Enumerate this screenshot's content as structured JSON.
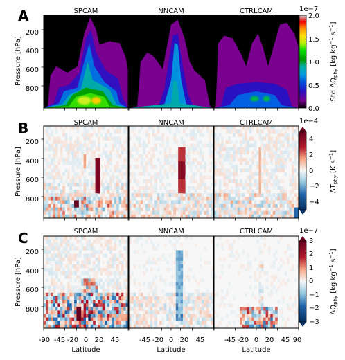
{
  "chart_data": [
    {
      "panel_letter": "A",
      "type": "heatmap",
      "subtitles": [
        "SPCAM",
        "NNCAM",
        "CTRLCAM"
      ],
      "ylabel": "Pressure [hPa]",
      "yticks": [
        "200",
        "400",
        "600",
        "800"
      ],
      "ylim": [
        1000,
        0
      ],
      "colorbar": {
        "label_main": "Std ΔQ",
        "label_sub": "phy",
        "label_units": "[kg kg",
        "label_units_end": " s",
        "exp1": "−1",
        "exp2": "−1",
        "units_close": "]",
        "offset": "1e−7",
        "ticks": [
          "0.0",
          "0.5",
          "1.0",
          "1.5",
          "2.0"
        ],
        "range": [
          0,
          2.0
        ],
        "colormap": "nipy_spectral"
      },
      "panels": [
        {
          "name": "SPCAM",
          "peak_std": 1.9,
          "peak_latitude": 10,
          "peak_pressure": 900
        },
        {
          "name": "NNCAM",
          "peak_std": 1.1,
          "peak_latitude": 10,
          "peak_pressure": 500
        },
        {
          "name": "CTRLCAM",
          "peak_std": 1.4,
          "peak_latitude": 5,
          "peak_pressure": 900
        }
      ]
    },
    {
      "panel_letter": "B",
      "type": "heatmap",
      "subtitles": [
        "SPCAM",
        "NNCAM",
        "CTRLCAM"
      ],
      "ylabel": "Pressure [hPa]",
      "yticks": [
        "200",
        "400",
        "600",
        "800"
      ],
      "ylim": [
        1000,
        0
      ],
      "colorbar": {
        "label_main": "ΔT",
        "label_sub": "phy",
        "label_units": "[K s",
        "exp1": "−1",
        "units_close": "]",
        "offset": "1e−4",
        "ticks": [
          "4",
          "2",
          "0",
          "−2",
          "−4"
        ],
        "range": [
          -5,
          5
        ],
        "colormap": "RdBu_r"
      }
    },
    {
      "panel_letter": "C",
      "type": "heatmap",
      "subtitles": [
        "SPCAM",
        "NNCAM",
        "CTRLCAM"
      ],
      "ylabel": "Pressure [hPa]",
      "yticks": [
        "200",
        "400",
        "600",
        "800"
      ],
      "ylim": [
        1000,
        0
      ],
      "xlabel": "Latitude",
      "xticks_first": [
        "-90",
        "-45",
        "-20",
        "0",
        "20",
        "45"
      ],
      "xticks_mid": [
        "-45",
        "-20",
        "0",
        "20",
        "45"
      ],
      "xticks_last": [
        "-45",
        "-20",
        "0",
        "20",
        "45",
        "90"
      ],
      "colorbar": {
        "label_main": "ΔQ",
        "label_sub": "phy",
        "label_units": "[kg kg",
        "label_units_end": " s",
        "exp1": "−1",
        "exp2": "−1",
        "units_close": "]",
        "offset": "1e−7",
        "ticks": [
          "3",
          "2",
          "1",
          "0",
          "−1",
          "−2",
          "−3"
        ],
        "range": [
          -3,
          3
        ],
        "colormap": "RdBu_r"
      }
    }
  ]
}
